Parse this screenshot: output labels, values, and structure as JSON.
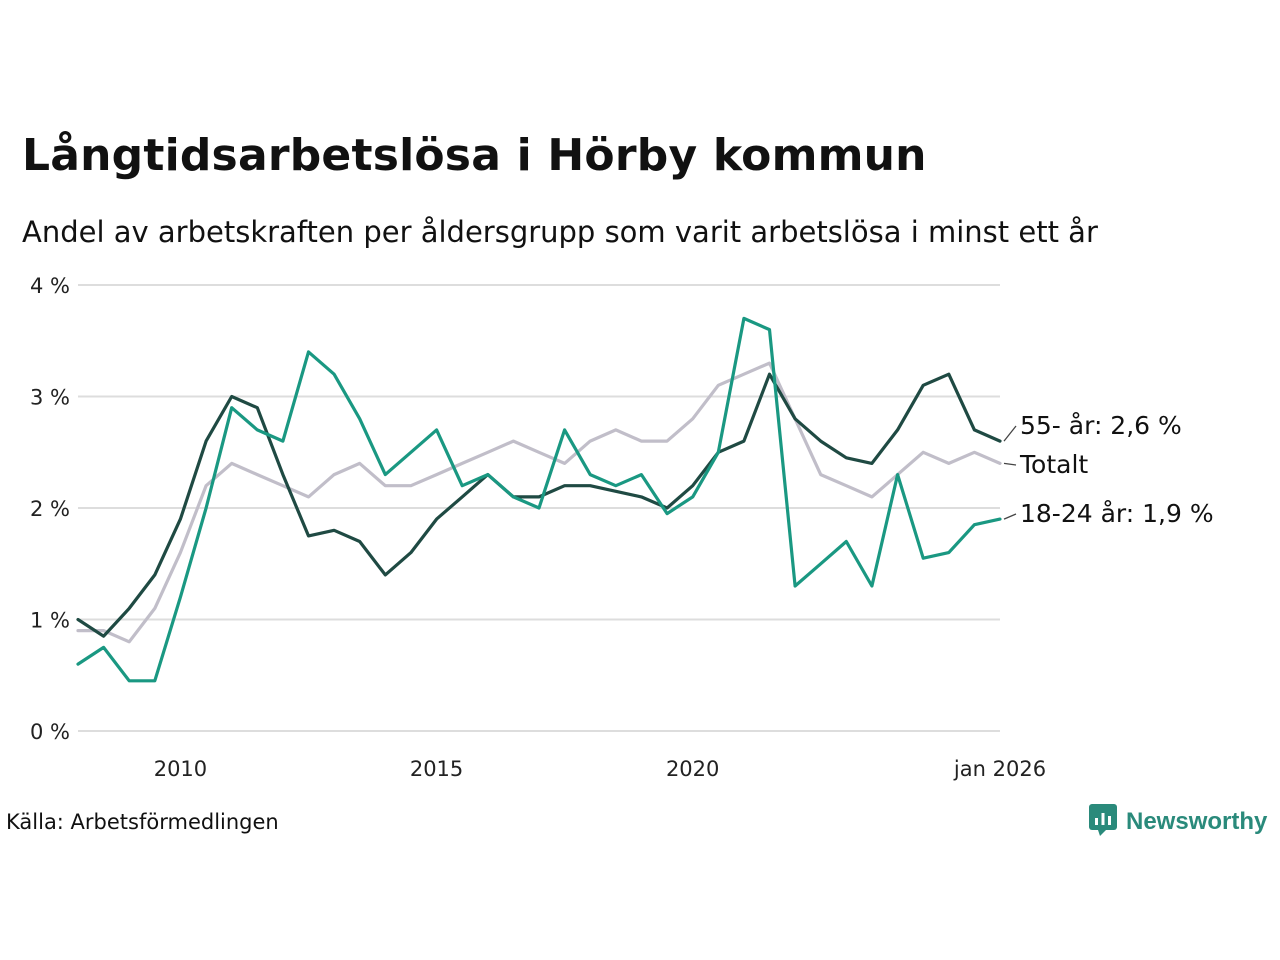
{
  "title": "Långtidsarbetslösa i Hörby kommun",
  "subtitle": "Andel av arbetskraften per åldersgrupp som varit arbetslösa i minst ett år",
  "source": "Källa: Arbetsförmedlingen",
  "brand": {
    "name": "Newsworthy",
    "icon": "newsworthy-logo-icon"
  },
  "colors": {
    "older": "#1f4a43",
    "young": "#1a9882",
    "total": "#c1bec9",
    "grid": "#dddddd"
  },
  "chart_data": {
    "type": "line",
    "title": "Långtidsarbetslösa i Hörby kommun",
    "xlabel": "",
    "ylabel": "",
    "ylim": [
      0,
      4
    ],
    "xlim": [
      2008.0,
      2026.0
    ],
    "y_ticks": [
      {
        "value": 0,
        "label": "0 %"
      },
      {
        "value": 1,
        "label": "1 %"
      },
      {
        "value": 2,
        "label": "2 %"
      },
      {
        "value": 3,
        "label": "3 %"
      },
      {
        "value": 4,
        "label": "4 %"
      }
    ],
    "x_ticks": [
      {
        "value": 2010,
        "label": "2010"
      },
      {
        "value": 2015,
        "label": "2015"
      },
      {
        "value": 2020,
        "label": "2020"
      },
      {
        "value": 2026.0,
        "label": "jan 2026"
      }
    ],
    "series": [
      {
        "name": "Totalt",
        "label": "Totalt",
        "color": "#c1bec9",
        "x": [
          2008.0,
          2008.5,
          2009.0,
          2009.5,
          2010.0,
          2010.5,
          2011.0,
          2011.5,
          2012.0,
          2012.5,
          2013.0,
          2013.5,
          2014.0,
          2014.5,
          2015.0,
          2015.5,
          2016.0,
          2016.5,
          2017.0,
          2017.5,
          2018.0,
          2018.5,
          2019.0,
          2019.5,
          2020.0,
          2020.5,
          2021.0,
          2021.5,
          2022.0,
          2022.5,
          2023.0,
          2023.5,
          2024.0,
          2024.5,
          2025.0,
          2025.5,
          2026.0
        ],
        "values": [
          0.9,
          0.9,
          0.8,
          1.1,
          1.6,
          2.2,
          2.4,
          2.3,
          2.2,
          2.1,
          2.3,
          2.4,
          2.2,
          2.2,
          2.3,
          2.4,
          2.5,
          2.6,
          2.5,
          2.4,
          2.6,
          2.7,
          2.6,
          2.6,
          2.8,
          3.1,
          3.2,
          3.3,
          2.8,
          2.3,
          2.2,
          2.1,
          2.3,
          2.5,
          2.4,
          2.5,
          2.4
        ]
      },
      {
        "name": "55- år",
        "label": "55- år: 2,6 %",
        "color": "#1f4a43",
        "x": [
          2008.0,
          2008.5,
          2009.0,
          2009.5,
          2010.0,
          2010.5,
          2011.0,
          2011.5,
          2012.0,
          2012.5,
          2013.0,
          2013.5,
          2014.0,
          2014.5,
          2015.0,
          2015.5,
          2016.0,
          2016.5,
          2017.0,
          2017.5,
          2018.0,
          2018.5,
          2019.0,
          2019.5,
          2020.0,
          2020.5,
          2021.0,
          2021.5,
          2022.0,
          2022.5,
          2023.0,
          2023.5,
          2024.0,
          2024.5,
          2025.0,
          2025.5,
          2026.0
        ],
        "values": [
          1.0,
          0.85,
          1.1,
          1.4,
          1.9,
          2.6,
          3.0,
          2.9,
          2.3,
          1.75,
          1.8,
          1.7,
          1.4,
          1.6,
          1.9,
          2.1,
          2.3,
          2.1,
          2.1,
          2.2,
          2.2,
          2.15,
          2.1,
          2.0,
          2.2,
          2.5,
          2.6,
          3.2,
          2.8,
          2.6,
          2.45,
          2.4,
          2.7,
          3.1,
          3.2,
          2.7,
          2.6
        ]
      },
      {
        "name": "18-24 år",
        "label": "18-24 år: 1,9 %",
        "color": "#1a9882",
        "x": [
          2008.0,
          2008.5,
          2009.0,
          2009.5,
          2010.0,
          2010.5,
          2011.0,
          2011.5,
          2012.0,
          2012.5,
          2013.0,
          2013.5,
          2014.0,
          2014.5,
          2015.0,
          2015.5,
          2016.0,
          2016.5,
          2017.0,
          2017.5,
          2018.0,
          2018.5,
          2019.0,
          2019.5,
          2020.0,
          2020.5,
          2021.0,
          2021.5,
          2022.0,
          2022.5,
          2023.0,
          2023.5,
          2024.0,
          2024.5,
          2025.0,
          2025.5,
          2026.0
        ],
        "values": [
          0.6,
          0.75,
          0.45,
          0.45,
          1.2,
          2.0,
          2.9,
          2.7,
          2.6,
          3.4,
          3.2,
          2.8,
          2.3,
          2.5,
          2.7,
          2.2,
          2.3,
          2.1,
          2.0,
          2.7,
          2.3,
          2.2,
          2.3,
          1.95,
          2.1,
          2.5,
          3.7,
          3.6,
          1.3,
          1.5,
          1.7,
          1.3,
          2.3,
          1.55,
          1.6,
          1.85,
          1.9
        ]
      }
    ]
  }
}
